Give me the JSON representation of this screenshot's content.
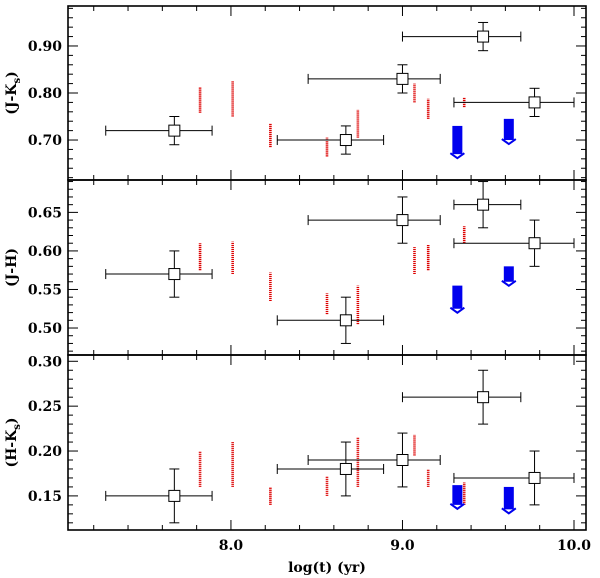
{
  "chart_data": {
    "type": "scatter",
    "xlabel": "log(t) (yr)",
    "xlim": [
      7.05,
      10.07
    ],
    "xticks": [
      "8.0",
      "9.0",
      "10.0"
    ],
    "xtick_values": [
      8.0,
      9.0,
      10.0
    ],
    "panels": [
      {
        "id": "jk",
        "ylabel": "(J-K",
        "ylabel_sub": "s",
        "ylabel_end": ")",
        "ylim": [
          0.615,
          0.985
        ],
        "yticks": [
          {
            "label": "0.70",
            "value": 0.7
          },
          {
            "label": "0.80",
            "value": 0.8
          },
          {
            "label": "0.90",
            "value": 0.9
          }
        ],
        "observations": [
          {
            "x": 7.67,
            "y": 0.72,
            "xerr_lo": 0.4,
            "xerr_hi": 0.22,
            "yerr": 0.03
          },
          {
            "x": 8.67,
            "y": 0.7,
            "xerr_lo": 0.4,
            "xerr_hi": 0.22,
            "yerr": 0.03
          },
          {
            "x": 9.0,
            "y": 0.83,
            "xerr_lo": 0.55,
            "xerr_hi": 0.22,
            "yerr": 0.03
          },
          {
            "x": 9.47,
            "y": 0.92,
            "xerr_lo": 0.47,
            "xerr_hi": 0.22,
            "yerr": 0.03
          },
          {
            "x": 9.77,
            "y": 0.78,
            "xerr_lo": 0.47,
            "xerr_hi": 0.23,
            "yerr": 0.03
          }
        ],
        "model_red": [
          {
            "x": 7.82,
            "y_min": 0.758,
            "y_max": 0.812
          },
          {
            "x": 8.01,
            "y_min": 0.75,
            "y_max": 0.825
          },
          {
            "x": 8.23,
            "y_min": 0.685,
            "y_max": 0.735
          },
          {
            "x": 8.56,
            "y_min": 0.665,
            "y_max": 0.705
          },
          {
            "x": 8.74,
            "y_min": 0.705,
            "y_max": 0.765
          },
          {
            "x": 9.07,
            "y_min": 0.78,
            "y_max": 0.82
          },
          {
            "x": 9.15,
            "y_min": 0.745,
            "y_max": 0.788
          },
          {
            "x": 9.36,
            "y_min": 0.77,
            "y_max": 0.79
          }
        ],
        "model_blue": [
          {
            "x": 9.32,
            "y_min": 0.67,
            "y_max": 0.73
          },
          {
            "x": 9.62,
            "y_min": 0.7,
            "y_max": 0.745
          }
        ]
      },
      {
        "id": "jh",
        "ylabel": "(J-H)",
        "ylabel_sub": "",
        "ylabel_end": "",
        "ylim": [
          0.465,
          0.692
        ],
        "yticks": [
          {
            "label": "0.50",
            "value": 0.5
          },
          {
            "label": "0.55",
            "value": 0.55
          },
          {
            "label": "0.60",
            "value": 0.6
          },
          {
            "label": "0.65",
            "value": 0.65
          }
        ],
        "observations": [
          {
            "x": 7.67,
            "y": 0.57,
            "xerr_lo": 0.4,
            "xerr_hi": 0.22,
            "yerr": 0.03
          },
          {
            "x": 8.67,
            "y": 0.51,
            "xerr_lo": 0.4,
            "xerr_hi": 0.22,
            "yerr": 0.03
          },
          {
            "x": 9.0,
            "y": 0.64,
            "xerr_lo": 0.55,
            "xerr_hi": 0.22,
            "yerr": 0.03
          },
          {
            "x": 9.47,
            "y": 0.66,
            "xerr_lo": 0.17,
            "xerr_hi": 0.22,
            "yerr": 0.03
          },
          {
            "x": 9.77,
            "y": 0.61,
            "xerr_lo": 0.47,
            "xerr_hi": 0.23,
            "yerr": 0.03
          }
        ],
        "model_red": [
          {
            "x": 7.82,
            "y_min": 0.575,
            "y_max": 0.61
          },
          {
            "x": 8.01,
            "y_min": 0.57,
            "y_max": 0.612
          },
          {
            "x": 8.23,
            "y_min": 0.535,
            "y_max": 0.572
          },
          {
            "x": 8.56,
            "y_min": 0.518,
            "y_max": 0.545
          },
          {
            "x": 8.74,
            "y_min": 0.505,
            "y_max": 0.555
          },
          {
            "x": 9.07,
            "y_min": 0.57,
            "y_max": 0.605
          },
          {
            "x": 9.15,
            "y_min": 0.575,
            "y_max": 0.608
          },
          {
            "x": 9.36,
            "y_min": 0.61,
            "y_max": 0.632
          }
        ],
        "model_blue": [
          {
            "x": 9.32,
            "y_min": 0.525,
            "y_max": 0.555
          },
          {
            "x": 9.62,
            "y_min": 0.56,
            "y_max": 0.58
          }
        ]
      },
      {
        "id": "hk",
        "ylabel": "(H-K",
        "ylabel_sub": "s",
        "ylabel_end": ")",
        "ylim": [
          0.112,
          0.307
        ],
        "yticks": [
          {
            "label": "0.15",
            "value": 0.15
          },
          {
            "label": "0.20",
            "value": 0.2
          },
          {
            "label": "0.25",
            "value": 0.25
          },
          {
            "label": "0.30",
            "value": 0.3
          }
        ],
        "observations": [
          {
            "x": 7.67,
            "y": 0.15,
            "xerr_lo": 0.4,
            "xerr_hi": 0.22,
            "yerr": 0.03
          },
          {
            "x": 8.67,
            "y": 0.18,
            "xerr_lo": 0.4,
            "xerr_hi": 0.22,
            "yerr": 0.03
          },
          {
            "x": 9.0,
            "y": 0.19,
            "xerr_lo": 0.55,
            "xerr_hi": 0.22,
            "yerr": 0.03
          },
          {
            "x": 9.47,
            "y": 0.26,
            "xerr_lo": 0.47,
            "xerr_hi": 0.22,
            "yerr": 0.03
          },
          {
            "x": 9.77,
            "y": 0.17,
            "xerr_lo": 0.47,
            "xerr_hi": 0.23,
            "yerr": 0.03
          }
        ],
        "model_red": [
          {
            "x": 7.82,
            "y_min": 0.16,
            "y_max": 0.2
          },
          {
            "x": 8.01,
            "y_min": 0.16,
            "y_max": 0.21
          },
          {
            "x": 8.23,
            "y_min": 0.14,
            "y_max": 0.16
          },
          {
            "x": 8.56,
            "y_min": 0.15,
            "y_max": 0.172
          },
          {
            "x": 8.74,
            "y_min": 0.16,
            "y_max": 0.215
          },
          {
            "x": 9.07,
            "y_min": 0.195,
            "y_max": 0.218
          },
          {
            "x": 9.15,
            "y_min": 0.16,
            "y_max": 0.18
          },
          {
            "x": 9.36,
            "y_min": 0.14,
            "y_max": 0.165
          }
        ],
        "model_blue": [
          {
            "x": 9.32,
            "y_min": 0.14,
            "y_max": 0.162
          },
          {
            "x": 9.62,
            "y_min": 0.135,
            "y_max": 0.16
          }
        ]
      }
    ],
    "colors": {
      "observation": "#000000",
      "model_red": "#dd0000",
      "model_blue": "#0000ee",
      "axis": "#000000"
    }
  }
}
